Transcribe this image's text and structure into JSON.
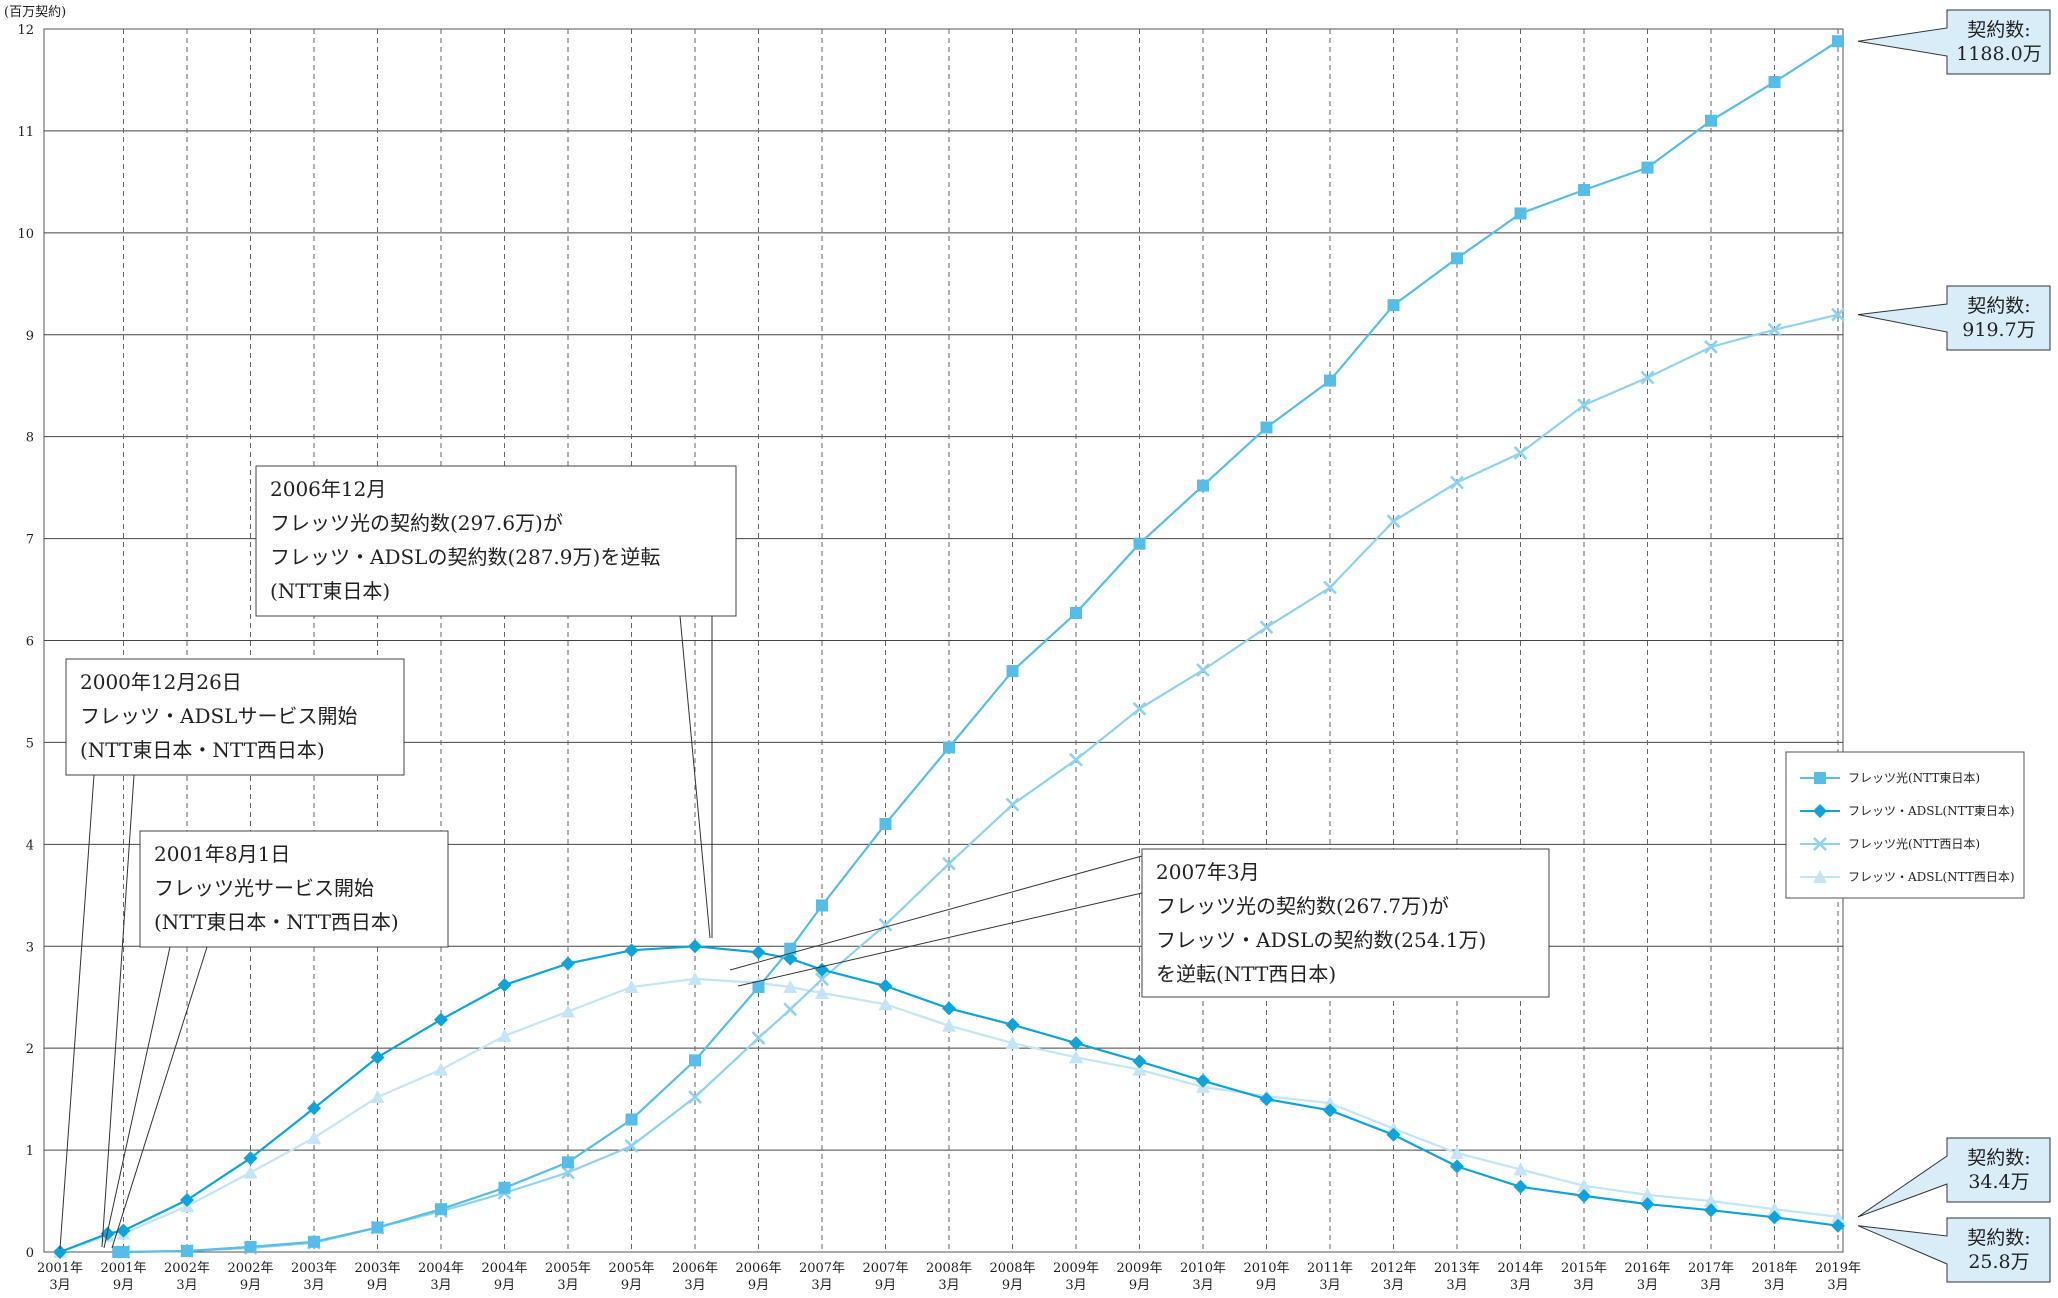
{
  "chart_data": {
    "type": "line",
    "unit_label": "(百万契約)",
    "ylim": [
      0,
      12
    ],
    "yticks": [
      "0",
      "1",
      "2",
      "3",
      "4",
      "5",
      "6",
      "7",
      "8",
      "9",
      "10",
      "11",
      "12"
    ],
    "grid": true,
    "legend_position": "right",
    "x_ticks": [
      {
        "t": 0,
        "year": "2001年",
        "month": "3月"
      },
      {
        "t": 6,
        "year": "2001年",
        "month": "9月"
      },
      {
        "t": 12,
        "year": "2002年",
        "month": "3月"
      },
      {
        "t": 18,
        "year": "2002年",
        "month": "9月"
      },
      {
        "t": 24,
        "year": "2003年",
        "month": "3月"
      },
      {
        "t": 30,
        "year": "2003年",
        "month": "9月"
      },
      {
        "t": 36,
        "year": "2004年",
        "month": "3月"
      },
      {
        "t": 42,
        "year": "2004年",
        "month": "9月"
      },
      {
        "t": 48,
        "year": "2005年",
        "month": "3月"
      },
      {
        "t": 54,
        "year": "2005年",
        "month": "9月"
      },
      {
        "t": 60,
        "year": "2006年",
        "month": "3月"
      },
      {
        "t": 66,
        "year": "2006年",
        "month": "9月"
      },
      {
        "t": 72,
        "year": "2007年",
        "month": "3月"
      },
      {
        "t": 78,
        "year": "2007年",
        "month": "9月"
      },
      {
        "t": 84,
        "year": "2008年",
        "month": "3月"
      },
      {
        "t": 90,
        "year": "2008年",
        "month": "9月"
      },
      {
        "t": 96,
        "year": "2009年",
        "month": "3月"
      },
      {
        "t": 102,
        "year": "2009年",
        "month": "9月"
      },
      {
        "t": 108,
        "year": "2010年",
        "month": "3月"
      },
      {
        "t": 114,
        "year": "2010年",
        "month": "9月"
      },
      {
        "t": 120,
        "year": "2011年",
        "month": "3月"
      },
      {
        "t": 126,
        "year": "2012年",
        "month": "3月"
      },
      {
        "t": 132,
        "year": "2013年",
        "month": "3月"
      },
      {
        "t": 138,
        "year": "2014年",
        "month": "3月"
      },
      {
        "t": 144,
        "year": "2015年",
        "month": "3月"
      },
      {
        "t": 150,
        "year": "2016年",
        "month": "3月"
      },
      {
        "t": 156,
        "year": "2017年",
        "month": "3月"
      },
      {
        "t": 162,
        "year": "2018年",
        "month": "3月"
      },
      {
        "t": 168,
        "year": "2019年",
        "month": "3月"
      }
    ],
    "series": [
      {
        "name": "フレッツ光(NTT東日本)",
        "color": "#56bde8",
        "marker": "square",
        "points": [
          [
            5.5,
            0
          ],
          [
            6,
            0
          ],
          [
            12,
            0.01
          ],
          [
            18,
            0.05
          ],
          [
            24,
            0.1
          ],
          [
            30,
            0.24
          ],
          [
            36,
            0.42
          ],
          [
            42,
            0.63
          ],
          [
            48,
            0.88
          ],
          [
            54,
            1.3
          ],
          [
            60,
            1.88
          ],
          [
            66,
            2.6
          ],
          [
            69,
            2.976
          ],
          [
            72,
            3.4
          ],
          [
            78,
            4.2
          ],
          [
            84,
            4.95
          ],
          [
            90,
            5.7
          ],
          [
            96,
            6.27
          ],
          [
            102,
            6.95
          ],
          [
            108,
            7.52
          ],
          [
            114,
            8.09
          ],
          [
            120,
            8.55
          ],
          [
            126,
            9.29
          ],
          [
            132,
            9.75
          ],
          [
            138,
            10.19
          ],
          [
            144,
            10.42
          ],
          [
            150,
            10.64
          ],
          [
            156,
            11.1
          ],
          [
            162,
            11.48
          ],
          [
            168,
            11.88
          ]
        ]
      },
      {
        "name": "フレッツ・ADSL(NTT東日本)",
        "color": "#0fa3da",
        "marker": "diamond",
        "points": [
          [
            0,
            0
          ],
          [
            4.5,
            0.18
          ],
          [
            6,
            0.21
          ],
          [
            12,
            0.51
          ],
          [
            18,
            0.92
          ],
          [
            24,
            1.41
          ],
          [
            30,
            1.91
          ],
          [
            36,
            2.28
          ],
          [
            42,
            2.62
          ],
          [
            48,
            2.83
          ],
          [
            54,
            2.96
          ],
          [
            60,
            3.0
          ],
          [
            66,
            2.94
          ],
          [
            69,
            2.879
          ],
          [
            72,
            2.77
          ],
          [
            78,
            2.61
          ],
          [
            84,
            2.39
          ],
          [
            90,
            2.23
          ],
          [
            96,
            2.05
          ],
          [
            102,
            1.87
          ],
          [
            108,
            1.68
          ],
          [
            114,
            1.5
          ],
          [
            120,
            1.39
          ],
          [
            126,
            1.15
          ],
          [
            132,
            0.84
          ],
          [
            138,
            0.64
          ],
          [
            144,
            0.55
          ],
          [
            150,
            0.47
          ],
          [
            156,
            0.41
          ],
          [
            162,
            0.34
          ],
          [
            168,
            0.258
          ]
        ]
      },
      {
        "name": "フレッツ光(NTT西日本)",
        "color": "#8fd2f0",
        "marker": "cross",
        "points": [
          [
            6,
            0
          ],
          [
            12,
            0.01
          ],
          [
            18,
            0.04
          ],
          [
            24,
            0.09
          ],
          [
            30,
            0.24
          ],
          [
            36,
            0.4
          ],
          [
            42,
            0.58
          ],
          [
            48,
            0.78
          ],
          [
            54,
            1.04
          ],
          [
            60,
            1.52
          ],
          [
            66,
            2.1
          ],
          [
            69,
            2.38
          ],
          [
            72,
            2.677
          ],
          [
            78,
            3.21
          ],
          [
            84,
            3.81
          ],
          [
            90,
            4.39
          ],
          [
            96,
            4.83
          ],
          [
            102,
            5.33
          ],
          [
            108,
            5.71
          ],
          [
            114,
            6.13
          ],
          [
            120,
            6.52
          ],
          [
            126,
            7.17
          ],
          [
            132,
            7.55
          ],
          [
            138,
            7.84
          ],
          [
            144,
            8.31
          ],
          [
            150,
            8.58
          ],
          [
            156,
            8.88
          ],
          [
            162,
            9.05
          ],
          [
            168,
            9.197
          ]
        ]
      },
      {
        "name": "フレッツ・ADSL(NTT西日本)",
        "color": "#c3e5f6",
        "marker": "triangle",
        "points": [
          [
            0,
            0
          ],
          [
            4.5,
            0.16
          ],
          [
            6,
            0.18
          ],
          [
            12,
            0.45
          ],
          [
            18,
            0.78
          ],
          [
            24,
            1.12
          ],
          [
            30,
            1.52
          ],
          [
            36,
            1.79
          ],
          [
            42,
            2.12
          ],
          [
            48,
            2.36
          ],
          [
            54,
            2.6
          ],
          [
            60,
            2.68
          ],
          [
            66,
            2.64
          ],
          [
            69,
            2.6
          ],
          [
            72,
            2.541
          ],
          [
            78,
            2.43
          ],
          [
            84,
            2.22
          ],
          [
            90,
            2.05
          ],
          [
            96,
            1.91
          ],
          [
            102,
            1.79
          ],
          [
            108,
            1.62
          ],
          [
            114,
            1.53
          ],
          [
            120,
            1.46
          ],
          [
            126,
            1.21
          ],
          [
            132,
            0.97
          ],
          [
            138,
            0.81
          ],
          [
            144,
            0.65
          ],
          [
            150,
            0.56
          ],
          [
            156,
            0.5
          ],
          [
            162,
            0.42
          ],
          [
            168,
            0.344
          ]
        ]
      }
    ],
    "annotations": [
      {
        "lines": [
          "2000年12月26日",
          "フレッツ・ADSLサービス開始",
          "(NTT東日本・NTT西日本)"
        ]
      },
      {
        "lines": [
          "2001年8月1日",
          "フレッツ光サービス開始",
          "(NTT東日本・NTT西日本)"
        ]
      },
      {
        "lines": [
          "2006年12月",
          "フレッツ光の契約数(297.6万)が",
          "フレッツ・ADSLの契約数(287.9万)を逆転",
          "(NTT東日本)"
        ]
      },
      {
        "lines": [
          "2007年3月",
          "フレッツ光の契約数(267.7万)が",
          "フレッツ・ADSLの契約数(254.1万)",
          "を逆転(NTT西日本)"
        ]
      }
    ],
    "callouts": [
      {
        "lines": [
          "契約数:",
          "1188.0万"
        ]
      },
      {
        "lines": [
          "契約数:",
          "919.7万"
        ]
      },
      {
        "lines": [
          "契約数:",
          "34.4万"
        ]
      },
      {
        "lines": [
          "契約数:",
          "25.8万"
        ]
      }
    ]
  }
}
